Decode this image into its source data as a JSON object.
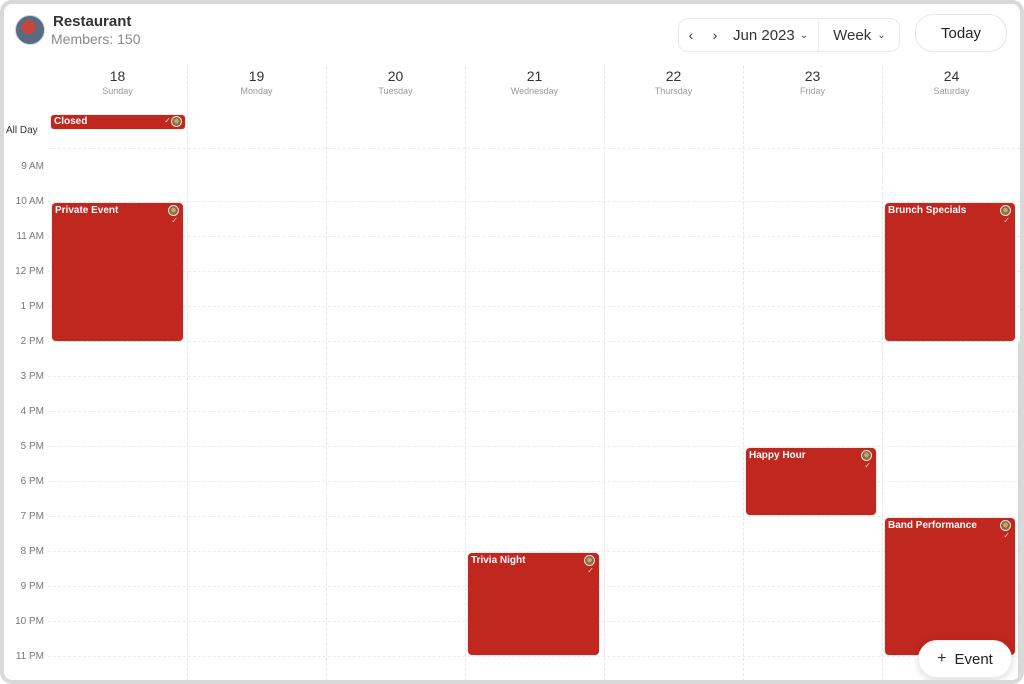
{
  "header": {
    "group_name": "Restaurant",
    "members": "Members: 150",
    "prev_icon": "chevron-left-icon",
    "next_icon": "chevron-right-icon",
    "prev_glyph": "‹",
    "next_glyph": "›",
    "month": "Jun 2023",
    "view": "Week",
    "caret": "⌄",
    "today_label": "Today"
  },
  "days": [
    {
      "num": "18",
      "name": "Sunday"
    },
    {
      "num": "19",
      "name": "Monday"
    },
    {
      "num": "20",
      "name": "Tuesday"
    },
    {
      "num": "21",
      "name": "Wednesday"
    },
    {
      "num": "22",
      "name": "Thursday"
    },
    {
      "num": "23",
      "name": "Friday"
    },
    {
      "num": "24",
      "name": "Saturday"
    }
  ],
  "all_day_label": "All Day",
  "hours": [
    "9 AM",
    "10 AM",
    "11 AM",
    "12 PM",
    "1 PM",
    "2 PM",
    "3 PM",
    "4 PM",
    "5 PM",
    "6 PM",
    "7 PM",
    "8 PM",
    "9 PM",
    "10 PM",
    "11 PM"
  ],
  "event_color": "#c0271e",
  "events": [
    {
      "title": "Closed",
      "day": "Sunday"
    },
    {
      "title": "Private Event",
      "day": "Sunday"
    },
    {
      "title": "Brunch Specials",
      "day": "Saturday"
    },
    {
      "title": "Happy Hour",
      "day": "Friday"
    },
    {
      "title": "Band Performance",
      "day": "Saturday"
    },
    {
      "title": "Trivia Night",
      "day": "Wednesday"
    }
  ],
  "check_glyph": "✓",
  "add_event": {
    "icon": "plus-icon",
    "glyph": "+",
    "label": "Event"
  }
}
